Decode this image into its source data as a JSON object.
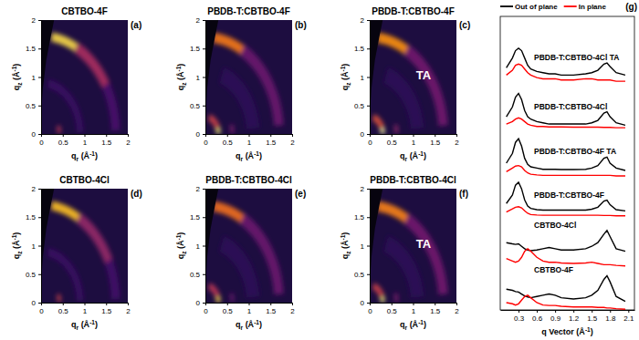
{
  "chart_data": [
    {
      "type": "heatmap",
      "panel": "(a)",
      "title": "CBTBO-4F",
      "xlabel": [
        "q",
        "r",
        " (Å",
        "-1",
        ")"
      ],
      "ylabel": [
        "q",
        "z",
        " (Å",
        "-1",
        ")"
      ],
      "xlim": [
        0,
        2
      ],
      "ylim": [
        0,
        2
      ],
      "xticks": [
        0,
        0.5,
        1,
        1.5,
        2
      ],
      "yticks": [
        0,
        0.5,
        1,
        1.5,
        2
      ],
      "clim": [
        0,
        1
      ],
      "wedge": {
        "x": [
          0,
          0,
          0.04,
          0.12,
          0.22,
          0.3
        ],
        "y": [
          2,
          0.35,
          0.8,
          1.3,
          1.7,
          2
        ]
      },
      "arcs": [
        {
          "q": 1.72,
          "width": 0.16,
          "chi": [
            8,
            28
          ],
          "intensity": 0.9
        },
        {
          "q": 1.72,
          "width": 0.2,
          "chi": [
            28,
            60
          ],
          "intensity": 0.45
        },
        {
          "q": 1.72,
          "width": 0.2,
          "chi": [
            60,
            88
          ],
          "intensity": 0.22
        },
        {
          "q": 0.42,
          "width": 0.08,
          "chi": [
            70,
            88
          ],
          "intensity": 0.5
        },
        {
          "q": 0.9,
          "width": 0.15,
          "chi": [
            10,
            88
          ],
          "intensity": 0.18
        }
      ]
    },
    {
      "type": "heatmap",
      "panel": "(b)",
      "title": "PBDB-T:CBTBO-4F",
      "xlabel": [
        "q",
        "r",
        " (Å",
        "-1",
        ")"
      ],
      "ylabel": [
        "q",
        "z",
        " (Å",
        "-1",
        ")"
      ],
      "xlim": [
        0,
        2
      ],
      "ylim": [
        0,
        2
      ],
      "xticks": [
        0,
        0.5,
        1,
        1.5,
        2
      ],
      "yticks": [
        0,
        0.5,
        1,
        1.5,
        2
      ],
      "clim": [
        0,
        1
      ],
      "wedge": {
        "x": [
          0,
          0,
          0.04,
          0.12,
          0.22,
          0.3
        ],
        "y": [
          2,
          0.35,
          0.8,
          1.3,
          1.7,
          2
        ]
      },
      "arcs": [
        {
          "q": 0.3,
          "width": 0.1,
          "chi": [
            70,
            89
          ],
          "intensity": 0.95
        },
        {
          "q": 0.3,
          "width": 0.12,
          "chi": [
            15,
            70
          ],
          "intensity": 0.55
        },
        {
          "q": 0.62,
          "width": 0.08,
          "chi": [
            75,
            89
          ],
          "intensity": 0.35
        },
        {
          "q": 1.7,
          "width": 0.18,
          "chi": [
            6,
            30
          ],
          "intensity": 0.7
        },
        {
          "q": 1.7,
          "width": 0.22,
          "chi": [
            30,
            85
          ],
          "intensity": 0.3
        },
        {
          "q": 1.1,
          "width": 0.3,
          "chi": [
            20,
            85
          ],
          "intensity": 0.15
        }
      ]
    },
    {
      "type": "heatmap",
      "panel": "(c)",
      "title": "PBDB-T:CBTBO-4F",
      "annotation": "TA",
      "xlabel": [
        "q",
        "r",
        " (Å",
        "-1",
        ")"
      ],
      "ylabel": [
        "q",
        "z",
        " (Å",
        "-1",
        ")"
      ],
      "xlim": [
        0,
        2
      ],
      "ylim": [
        0,
        2
      ],
      "xticks": [
        0,
        0.5,
        1,
        1.5,
        2
      ],
      "yticks": [
        0,
        0.5,
        1,
        1.5,
        2
      ],
      "clim": [
        0,
        1
      ],
      "wedge": {
        "x": [
          0,
          0,
          0.04,
          0.12,
          0.22,
          0.3
        ],
        "y": [
          2,
          0.35,
          0.8,
          1.3,
          1.7,
          2
        ]
      },
      "arcs": [
        {
          "q": 0.3,
          "width": 0.1,
          "chi": [
            70,
            89
          ],
          "intensity": 1.0
        },
        {
          "q": 0.3,
          "width": 0.12,
          "chi": [
            15,
            70
          ],
          "intensity": 0.6
        },
        {
          "q": 0.62,
          "width": 0.08,
          "chi": [
            75,
            89
          ],
          "intensity": 0.4
        },
        {
          "q": 1.7,
          "width": 0.18,
          "chi": [
            6,
            30
          ],
          "intensity": 0.75
        },
        {
          "q": 1.7,
          "width": 0.22,
          "chi": [
            30,
            85
          ],
          "intensity": 0.32
        },
        {
          "q": 1.1,
          "width": 0.3,
          "chi": [
            20,
            85
          ],
          "intensity": 0.15
        }
      ]
    },
    {
      "type": "heatmap",
      "panel": "(d)",
      "title": "CBTBO-4Cl",
      "xlabel": [
        "q",
        "r",
        " (Å",
        "-1",
        ")"
      ],
      "ylabel": [
        "q",
        "z",
        " (Å",
        "-1",
        ")"
      ],
      "xlim": [
        0,
        2
      ],
      "ylim": [
        0,
        2
      ],
      "xticks": [
        0,
        0.5,
        1,
        1.5,
        2
      ],
      "yticks": [
        0,
        0.5,
        1,
        1.5,
        2
      ],
      "clim": [
        0,
        1
      ],
      "wedge": {
        "x": [
          0,
          0,
          0.04,
          0.12,
          0.22,
          0.3
        ],
        "y": [
          2,
          0.35,
          0.8,
          1.3,
          1.7,
          2
        ]
      },
      "arcs": [
        {
          "q": 1.72,
          "width": 0.16,
          "chi": [
            8,
            30
          ],
          "intensity": 0.85
        },
        {
          "q": 1.72,
          "width": 0.2,
          "chi": [
            30,
            65
          ],
          "intensity": 0.4
        },
        {
          "q": 1.72,
          "width": 0.2,
          "chi": [
            65,
            88
          ],
          "intensity": 0.2
        },
        {
          "q": 0.42,
          "width": 0.08,
          "chi": [
            70,
            88
          ],
          "intensity": 0.55
        },
        {
          "q": 0.9,
          "width": 0.15,
          "chi": [
            10,
            88
          ],
          "intensity": 0.18
        }
      ]
    },
    {
      "type": "heatmap",
      "panel": "(e)",
      "title": "PBDB-T:CBTBO-4Cl",
      "xlabel": [
        "q",
        "r",
        " (Å",
        "-1",
        ")"
      ],
      "ylabel": [
        "q",
        "z",
        " (Å",
        "-1",
        ")"
      ],
      "xlim": [
        0,
        2
      ],
      "ylim": [
        0,
        2
      ],
      "xticks": [
        0,
        0.5,
        1,
        1.5,
        2
      ],
      "yticks": [
        0,
        0.5,
        1,
        1.5,
        2
      ],
      "clim": [
        0,
        1
      ],
      "wedge": {
        "x": [
          0,
          0,
          0.04,
          0.12,
          0.22,
          0.3
        ],
        "y": [
          2,
          0.35,
          0.8,
          1.3,
          1.7,
          2
        ]
      },
      "arcs": [
        {
          "q": 0.3,
          "width": 0.1,
          "chi": [
            70,
            89
          ],
          "intensity": 0.9
        },
        {
          "q": 0.3,
          "width": 0.12,
          "chi": [
            15,
            70
          ],
          "intensity": 0.5
        },
        {
          "q": 0.62,
          "width": 0.08,
          "chi": [
            75,
            89
          ],
          "intensity": 0.3
        },
        {
          "q": 1.7,
          "width": 0.18,
          "chi": [
            6,
            30
          ],
          "intensity": 0.68
        },
        {
          "q": 1.7,
          "width": 0.22,
          "chi": [
            30,
            85
          ],
          "intensity": 0.3
        },
        {
          "q": 1.1,
          "width": 0.3,
          "chi": [
            20,
            85
          ],
          "intensity": 0.15
        }
      ]
    },
    {
      "type": "heatmap",
      "panel": "(f)",
      "title": "PBDB-T:CBTBO-4Cl",
      "annotation": "TA",
      "xlabel": [
        "q",
        "r",
        " (Å",
        "-1",
        ")"
      ],
      "ylabel": [
        "q",
        "z",
        " (Å",
        "-1",
        ")"
      ],
      "xlim": [
        0,
        2
      ],
      "ylim": [
        0,
        2
      ],
      "xticks": [
        0,
        0.5,
        1,
        1.5,
        2
      ],
      "yticks": [
        0,
        0.5,
        1,
        1.5,
        2
      ],
      "clim": [
        0,
        1
      ],
      "wedge": {
        "x": [
          0,
          0,
          0.04,
          0.12,
          0.22,
          0.3
        ],
        "y": [
          2,
          0.35,
          0.8,
          1.3,
          1.7,
          2
        ]
      },
      "arcs": [
        {
          "q": 0.3,
          "width": 0.1,
          "chi": [
            70,
            89
          ],
          "intensity": 0.95
        },
        {
          "q": 0.3,
          "width": 0.12,
          "chi": [
            15,
            70
          ],
          "intensity": 0.55
        },
        {
          "q": 0.62,
          "width": 0.08,
          "chi": [
            75,
            89
          ],
          "intensity": 0.35
        },
        {
          "q": 1.7,
          "width": 0.18,
          "chi": [
            6,
            30
          ],
          "intensity": 0.72
        },
        {
          "q": 1.7,
          "width": 0.22,
          "chi": [
            30,
            85
          ],
          "intensity": 0.32
        },
        {
          "q": 1.1,
          "width": 0.3,
          "chi": [
            20,
            85
          ],
          "intensity": 0.15
        }
      ]
    },
    {
      "type": "line",
      "panel": "(g)",
      "xlabel": [
        "q Vector (Å",
        "-1",
        ")"
      ],
      "xlim": [
        0,
        2.2
      ],
      "xticks": [
        0.3,
        0.6,
        0.9,
        1.2,
        1.5,
        1.8,
        2.1
      ],
      "ylim": [
        0,
        12
      ],
      "tick_labels": "x",
      "legend": "top",
      "x": [
        0.1,
        0.2,
        0.25,
        0.3,
        0.35,
        0.4,
        0.45,
        0.5,
        0.6,
        0.7,
        0.8,
        0.9,
        1.0,
        1.2,
        1.4,
        1.5,
        1.6,
        1.7,
        1.75,
        1.8,
        1.9,
        2.05
      ],
      "annotations": [
        "PBDB-T:CBTBO-4Cl TA",
        "PBDB-T:CBTBO-4Cl",
        "PBDB-T:CBTBO-4F TA",
        "PBDB-T:CBTBO-4F",
        "CBTBO-4Cl",
        "CBTBO-4F"
      ],
      "series": [
        {
          "name": "Out of plane",
          "color": "#000000",
          "values": [
            [
              9.9,
              10.3,
              10.6,
              10.7,
              10.6,
              10.3,
              10.0,
              9.85,
              9.75,
              9.7,
              9.65,
              9.65,
              9.6,
              9.6,
              9.65,
              9.7,
              9.8,
              10.05,
              10.1,
              9.95,
              9.7,
              9.6
            ],
            [
              7.9,
              8.3,
              8.7,
              8.85,
              8.6,
              8.15,
              7.9,
              7.8,
              7.7,
              7.65,
              7.6,
              7.6,
              7.6,
              7.6,
              7.6,
              7.65,
              7.75,
              8.05,
              8.1,
              7.9,
              7.65,
              7.55
            ],
            [
              6.0,
              6.4,
              6.85,
              7.0,
              6.7,
              6.2,
              5.95,
              5.85,
              5.8,
              5.75,
              5.75,
              5.75,
              5.74,
              5.74,
              5.75,
              5.8,
              5.9,
              6.2,
              6.25,
              6.0,
              5.8,
              5.7
            ],
            [
              4.35,
              4.7,
              5.1,
              5.22,
              4.95,
              4.5,
              4.25,
              4.15,
              4.1,
              4.08,
              4.08,
              4.08,
              4.08,
              4.08,
              4.08,
              4.12,
              4.2,
              4.45,
              4.49,
              4.3,
              4.1,
              4.05
            ],
            [
              2.75,
              2.7,
              2.68,
              2.7,
              2.6,
              2.5,
              2.45,
              2.42,
              2.45,
              2.5,
              2.55,
              2.5,
              2.45,
              2.45,
              2.5,
              2.6,
              2.75,
              3.1,
              3.25,
              3.0,
              2.5,
              2.4
            ],
            [
              0.85,
              0.8,
              0.75,
              0.73,
              0.65,
              0.57,
              0.53,
              0.5,
              0.55,
              0.6,
              0.65,
              0.6,
              0.5,
              0.45,
              0.5,
              0.6,
              0.8,
              1.25,
              1.4,
              1.15,
              0.55,
              0.35
            ]
          ]
        },
        {
          "name": "In plane",
          "color": "#ff0000",
          "values": [
            [
              9.6,
              9.8,
              10.0,
              10.05,
              10.0,
              9.85,
              9.7,
              9.6,
              9.5,
              9.45,
              9.45,
              9.45,
              9.4,
              9.4,
              9.45,
              9.45,
              9.4,
              9.4,
              9.4,
              9.4,
              9.35,
              9.35
            ],
            [
              7.6,
              7.7,
              7.8,
              7.85,
              7.8,
              7.7,
              7.6,
              7.55,
              7.5,
              7.5,
              7.48,
              7.48,
              7.48,
              7.47,
              7.47,
              7.47,
              7.47,
              7.46,
              7.46,
              7.46,
              7.45,
              7.45
            ],
            [
              5.65,
              5.8,
              5.88,
              5.9,
              5.85,
              5.7,
              5.6,
              5.55,
              5.52,
              5.5,
              5.5,
              5.5,
              5.5,
              5.5,
              5.5,
              5.5,
              5.5,
              5.5,
              5.5,
              5.5,
              5.48,
              5.48
            ],
            [
              4.0,
              4.13,
              4.2,
              4.22,
              4.17,
              4.05,
              3.95,
              3.9,
              3.88,
              3.87,
              3.87,
              3.87,
              3.87,
              3.87,
              3.87,
              3.87,
              3.87,
              3.86,
              3.86,
              3.86,
              3.85,
              3.85
            ],
            [
              2.1,
              2.0,
              1.95,
              2.0,
              2.15,
              2.4,
              2.5,
              2.4,
              2.15,
              2.0,
              1.95,
              1.95,
              1.92,
              1.9,
              1.92,
              1.95,
              1.9,
              1.85,
              1.85,
              1.85,
              1.82,
              1.8
            ],
            [
              0.3,
              0.25,
              0.2,
              0.25,
              0.4,
              0.55,
              0.6,
              0.5,
              0.3,
              0.2,
              0.18,
              0.18,
              0.15,
              0.12,
              0.12,
              0.12,
              0.1,
              0.1,
              0.08,
              0.08,
              0.05,
              0.03
            ]
          ]
        }
      ]
    }
  ]
}
